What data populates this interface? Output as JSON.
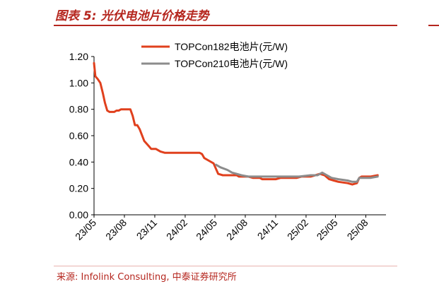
{
  "header": {
    "title": "图表 5:  光伏电池片价格走势"
  },
  "footer": {
    "source": "来源:  Infolink Consulting,  中泰证券研究所"
  },
  "colors": {
    "accent": "#b5261e",
    "series1": "#e0401d",
    "series2": "#8c8c8c"
  },
  "chart_data": {
    "type": "line",
    "title": "",
    "xlabel": "",
    "ylabel": "",
    "ylim": [
      0,
      1.2
    ],
    "yticks": [
      "0.00",
      "0.20",
      "0.40",
      "0.60",
      "0.80",
      "1.00",
      "1.20"
    ],
    "xlim": [
      "2023-05-01",
      "2025-10-01"
    ],
    "xticks": [
      "23/05",
      "23/08",
      "23/11",
      "24/02",
      "24/05",
      "24/08",
      "24/11",
      "25/02",
      "25/05",
      "25/08"
    ],
    "grid": false,
    "legend": "top-center",
    "series": [
      {
        "name": "TOPCon182电池片(元/W)",
        "color": "#e0401d",
        "points": [
          [
            "2023-05-01",
            1.15
          ],
          [
            "2023-05-05",
            1.05
          ],
          [
            "2023-05-12",
            1.03
          ],
          [
            "2023-05-20",
            1.0
          ],
          [
            "2023-05-28",
            0.92
          ],
          [
            "2023-06-03",
            0.85
          ],
          [
            "2023-06-10",
            0.79
          ],
          [
            "2023-06-17",
            0.78
          ],
          [
            "2023-07-01",
            0.78
          ],
          [
            "2023-07-08",
            0.79
          ],
          [
            "2023-07-15",
            0.79
          ],
          [
            "2023-07-22",
            0.8
          ],
          [
            "2023-08-19",
            0.8
          ],
          [
            "2023-08-26",
            0.75
          ],
          [
            "2023-09-02",
            0.68
          ],
          [
            "2023-09-09",
            0.68
          ],
          [
            "2023-09-16",
            0.65
          ],
          [
            "2023-09-30",
            0.56
          ],
          [
            "2023-10-14",
            0.52
          ],
          [
            "2023-10-21",
            0.5
          ],
          [
            "2023-11-04",
            0.5
          ],
          [
            "2023-11-18",
            0.48
          ],
          [
            "2023-12-02",
            0.47
          ],
          [
            "2024-03-16",
            0.47
          ],
          [
            "2024-03-23",
            0.46
          ],
          [
            "2024-03-30",
            0.43
          ],
          [
            "2024-04-13",
            0.41
          ],
          [
            "2024-04-27",
            0.39
          ],
          [
            "2024-05-04",
            0.35
          ],
          [
            "2024-05-11",
            0.31
          ],
          [
            "2024-05-25",
            0.3
          ],
          [
            "2024-07-06",
            0.3
          ],
          [
            "2024-07-13",
            0.29
          ],
          [
            "2024-08-10",
            0.29
          ],
          [
            "2024-08-24",
            0.28
          ],
          [
            "2024-09-14",
            0.28
          ],
          [
            "2024-09-21",
            0.27
          ],
          [
            "2024-11-02",
            0.27
          ],
          [
            "2024-11-16",
            0.28
          ],
          [
            "2025-01-04",
            0.28
          ],
          [
            "2025-01-18",
            0.29
          ],
          [
            "2025-02-15",
            0.29
          ],
          [
            "2025-03-01",
            0.3
          ],
          [
            "2025-03-15",
            0.31
          ],
          [
            "2025-03-29",
            0.3
          ],
          [
            "2025-04-12",
            0.27
          ],
          [
            "2025-04-26",
            0.26
          ],
          [
            "2025-05-10",
            0.25
          ],
          [
            "2025-06-07",
            0.24
          ],
          [
            "2025-06-21",
            0.23
          ],
          [
            "2025-07-05",
            0.24
          ],
          [
            "2025-07-12",
            0.28
          ],
          [
            "2025-07-19",
            0.29
          ],
          [
            "2025-08-16",
            0.29
          ],
          [
            "2025-09-06",
            0.3
          ]
        ]
      },
      {
        "name": "TOPCon210电池片(元/W)",
        "color": "#8c8c8c",
        "points": [
          [
            "2024-05-04",
            0.38
          ],
          [
            "2024-05-18",
            0.36
          ],
          [
            "2024-06-08",
            0.34
          ],
          [
            "2024-06-22",
            0.32
          ],
          [
            "2024-07-06",
            0.31
          ],
          [
            "2024-07-20",
            0.3
          ],
          [
            "2024-08-10",
            0.29
          ],
          [
            "2024-09-07",
            0.29
          ],
          [
            "2024-10-05",
            0.29
          ],
          [
            "2024-10-19",
            0.29
          ],
          [
            "2024-11-16",
            0.29
          ],
          [
            "2024-12-14",
            0.29
          ],
          [
            "2025-01-11",
            0.29
          ],
          [
            "2025-02-15",
            0.3
          ],
          [
            "2025-03-08",
            0.3
          ],
          [
            "2025-03-22",
            0.32
          ],
          [
            "2025-04-05",
            0.3
          ],
          [
            "2025-04-19",
            0.28
          ],
          [
            "2025-05-10",
            0.27
          ],
          [
            "2025-06-07",
            0.26
          ],
          [
            "2025-06-21",
            0.25
          ],
          [
            "2025-07-05",
            0.25
          ],
          [
            "2025-07-12",
            0.28
          ],
          [
            "2025-07-19",
            0.28
          ],
          [
            "2025-08-16",
            0.28
          ],
          [
            "2025-09-06",
            0.29
          ]
        ]
      }
    ]
  }
}
